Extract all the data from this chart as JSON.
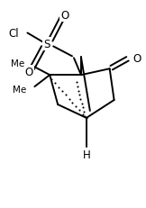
{
  "bg_color": "#ffffff",
  "line_color": "#000000",
  "lw": 1.4,
  "fig_width": 1.62,
  "fig_height": 2.32,
  "dpi": 100,
  "xlim": [
    0,
    162
  ],
  "ylim": [
    0,
    232
  ]
}
